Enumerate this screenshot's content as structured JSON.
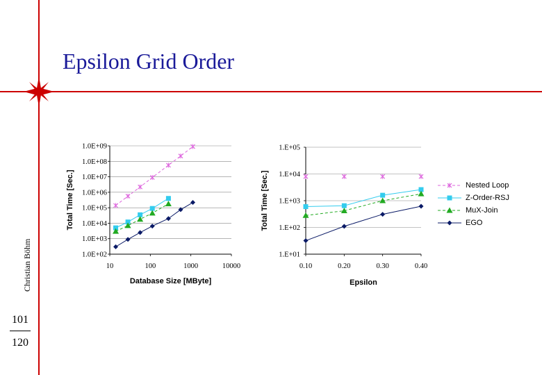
{
  "slide": {
    "title": "Epsilon Grid Order",
    "author": "Christian Böhm",
    "page_current": "101",
    "page_total": "120"
  },
  "colors": {
    "accent_line": "#cc0000",
    "title": "#1a1a99",
    "nested_loop": "#dd66dd",
    "z_order_rsj": "#33ccee",
    "mux_join": "#22aa22",
    "ego": "#0a1a66"
  },
  "legend": [
    {
      "name": "Nested Loop",
      "color": "#dd66dd",
      "marker": "x",
      "dash": true
    },
    {
      "name": "Z-Order-RSJ",
      "color": "#33ccee",
      "marker": "square",
      "dash": false
    },
    {
      "name": "MuX-Join",
      "color": "#22aa22",
      "marker": "triangle",
      "dash": true
    },
    {
      "name": "EGO",
      "color": "#0a1a66",
      "marker": "diamond",
      "dash": false
    }
  ],
  "chart_data": [
    {
      "type": "scatter",
      "xlabel": "Database Size [MByte]",
      "ylabel": "Total Time [Sec.]",
      "xscale": "log",
      "yscale": "log",
      "xlim": [
        10,
        10000
      ],
      "ylim": [
        100,
        1000000000
      ],
      "x_ticks": [
        "10",
        "100",
        "1000",
        "10000"
      ],
      "y_ticks": [
        "1.0E+02",
        "1.0E+03",
        "1.0E+04",
        "1.0E+05",
        "1.0E+06",
        "1.0E+07",
        "1.0E+08",
        "1.0E+09"
      ],
      "grid": "horizontal",
      "series": [
        {
          "name": "Nested Loop",
          "x": [
            14,
            28,
            56,
            112,
            280,
            560,
            1120
          ],
          "y": [
            140000,
            560000,
            2200000,
            9000000,
            56000000,
            220000000,
            900000000
          ]
        },
        {
          "name": "Z-Order-RSJ",
          "x": [
            14,
            28,
            56,
            112,
            280
          ],
          "y": [
            5000,
            12000,
            35000,
            90000,
            400000
          ]
        },
        {
          "name": "MuX-Join",
          "x": [
            14,
            28,
            56,
            112,
            280
          ],
          "y": [
            3000,
            7000,
            18000,
            45000,
            180000
          ]
        },
        {
          "name": "EGO",
          "x": [
            14,
            28,
            56,
            112,
            280,
            560,
            1120
          ],
          "y": [
            300,
            900,
            2500,
            6500,
            20000,
            75000,
            220000
          ]
        }
      ]
    },
    {
      "type": "line",
      "xlabel": "Epsilon",
      "ylabel": "Total Time [Sec.]",
      "yscale": "log",
      "xlim": [
        0.1,
        0.4
      ],
      "ylim": [
        10,
        100000
      ],
      "x_ticks": [
        "0.10",
        "0.20",
        "0.30",
        "0.40"
      ],
      "y_ticks": [
        "1.E+01",
        "1.E+02",
        "1.E+03",
        "1.E+04",
        "1.E+05"
      ],
      "grid": "horizontal",
      "series": [
        {
          "name": "Nested Loop",
          "x": [
            0.1,
            0.2,
            0.3,
            0.4
          ],
          "y": [
            8000,
            8000,
            8000,
            8000
          ]
        },
        {
          "name": "Z-Order-RSJ",
          "x": [
            0.1,
            0.2,
            0.3,
            0.4
          ],
          "y": [
            600,
            650,
            1600,
            2600
          ]
        },
        {
          "name": "MuX-Join",
          "x": [
            0.1,
            0.2,
            0.3,
            0.4
          ],
          "y": [
            280,
            420,
            1000,
            1800
          ]
        },
        {
          "name": "EGO",
          "x": [
            0.1,
            0.2,
            0.3,
            0.4
          ],
          "y": [
            32,
            110,
            310,
            620
          ]
        }
      ]
    }
  ]
}
